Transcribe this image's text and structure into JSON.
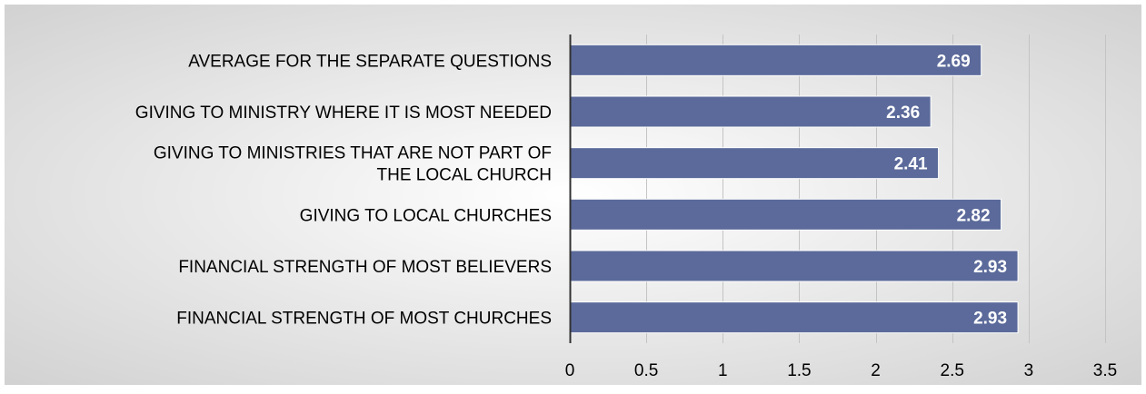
{
  "chart_data": {
    "type": "bar",
    "orientation": "horizontal",
    "categories": [
      "AVERAGE FOR THE SEPARATE QUESTIONS",
      "GIVING TO MINISTRY WHERE IT IS MOST NEEDED",
      "GIVING TO MINISTRIES THAT ARE NOT PART OF THE LOCAL CHURCH",
      "GIVING TO LOCAL CHURCHES",
      "FINANCIAL STRENGTH OF MOST BELIEVERS",
      "FINANCIAL STRENGTH OF MOST CHURCHES"
    ],
    "category_lines": [
      [
        "AVERAGE FOR THE SEPARATE QUESTIONS"
      ],
      [
        "GIVING TO MINISTRY WHERE IT IS MOST NEEDED"
      ],
      [
        "GIVING TO MINISTRIES THAT ARE NOT PART OF",
        "THE LOCAL CHURCH"
      ],
      [
        "GIVING TO LOCAL CHURCHES"
      ],
      [
        "FINANCIAL STRENGTH OF MOST BELIEVERS"
      ],
      [
        "FINANCIAL STRENGTH OF MOST CHURCHES"
      ]
    ],
    "values": [
      2.69,
      2.36,
      2.41,
      2.82,
      2.93,
      2.93
    ],
    "data_labels": [
      "2.69",
      "2.36",
      "2.41",
      "2.82",
      "2.93",
      "2.93"
    ],
    "xlim": [
      0,
      3.5
    ],
    "ticks": [
      0,
      0.5,
      1,
      1.5,
      2,
      2.5,
      3,
      3.5
    ],
    "tick_labels": [
      "0",
      "0.5",
      "1",
      "1.5",
      "2",
      "2.5",
      "3",
      "3.5"
    ],
    "title": "",
    "xlabel": "",
    "ylabel": "",
    "grid": true,
    "legend": "none",
    "colors": {
      "bar": "#5b6a9a",
      "bar_edge": "#ffffff",
      "data_label": "#ffffff",
      "text": "#000000",
      "grid": "#c4c4c4",
      "axis": "#333333",
      "background_center": "#ffffff",
      "background_edge": "#d2d2d2"
    }
  }
}
